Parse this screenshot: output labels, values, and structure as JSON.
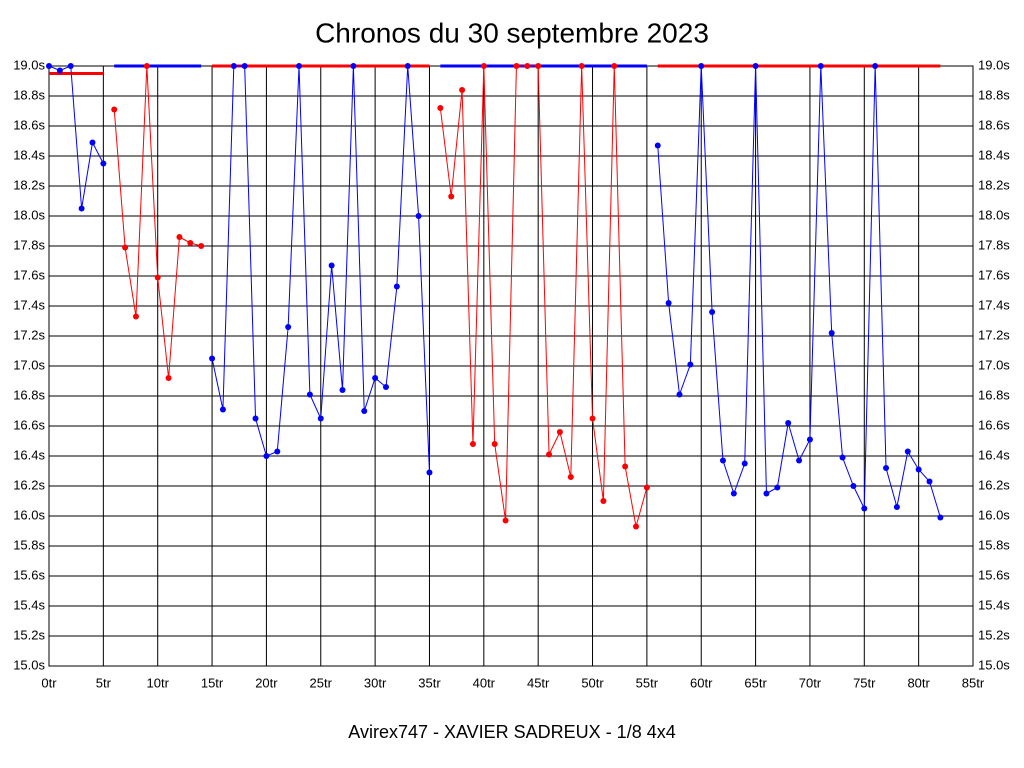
{
  "chart_data": {
    "type": "line",
    "title": "Chronos du 30 septembre 2023",
    "xlabel": "Avirex747 - XAVIER SADREUX - 1/8 4x4",
    "xlim": [
      0,
      85
    ],
    "ylim": [
      15.0,
      19.0
    ],
    "xticks": [
      {
        "value": 0,
        "label": "0tr"
      },
      {
        "value": 5,
        "label": "5tr"
      },
      {
        "value": 10,
        "label": "10tr"
      },
      {
        "value": 15,
        "label": "15tr"
      },
      {
        "value": 20,
        "label": "20tr"
      },
      {
        "value": 25,
        "label": "25tr"
      },
      {
        "value": 30,
        "label": "30tr"
      },
      {
        "value": 35,
        "label": "35tr"
      },
      {
        "value": 40,
        "label": "40tr"
      },
      {
        "value": 45,
        "label": "45tr"
      },
      {
        "value": 50,
        "label": "50tr"
      },
      {
        "value": 55,
        "label": "55tr"
      },
      {
        "value": 60,
        "label": "60tr"
      },
      {
        "value": 65,
        "label": "65tr"
      },
      {
        "value": 70,
        "label": "70tr"
      },
      {
        "value": 75,
        "label": "75tr"
      },
      {
        "value": 80,
        "label": "80tr"
      },
      {
        "value": 85,
        "label": "85tr"
      }
    ],
    "yticks": [
      {
        "value": 15.0,
        "label": "15.0s"
      },
      {
        "value": 15.2,
        "label": "15.2s"
      },
      {
        "value": 15.4,
        "label": "15.4s"
      },
      {
        "value": 15.6,
        "label": "15.6s"
      },
      {
        "value": 15.8,
        "label": "15.8s"
      },
      {
        "value": 16.0,
        "label": "16.0s"
      },
      {
        "value": 16.2,
        "label": "16.2s"
      },
      {
        "value": 16.4,
        "label": "16.4s"
      },
      {
        "value": 16.6,
        "label": "16.6s"
      },
      {
        "value": 16.8,
        "label": "16.8s"
      },
      {
        "value": 17.0,
        "label": "17.0s"
      },
      {
        "value": 17.2,
        "label": "17.2s"
      },
      {
        "value": 17.4,
        "label": "17.4s"
      },
      {
        "value": 17.6,
        "label": "17.6s"
      },
      {
        "value": 17.8,
        "label": "17.8s"
      },
      {
        "value": 18.0,
        "label": "18.0s"
      },
      {
        "value": 18.2,
        "label": "18.2s"
      },
      {
        "value": 18.4,
        "label": "18.4s"
      },
      {
        "value": 18.6,
        "label": "18.6s"
      },
      {
        "value": 18.8,
        "label": "18.8s"
      },
      {
        "value": 19.0,
        "label": "19.0s"
      }
    ],
    "grid": true,
    "series": [
      {
        "color": "#0000ff",
        "x": [
          0,
          1,
          2,
          3,
          4,
          5
        ],
        "values": [
          19.0,
          18.97,
          19.0,
          18.05,
          18.49,
          18.35
        ]
      },
      {
        "color": "#ff0000",
        "x": [
          6,
          7,
          8,
          9,
          10,
          11,
          12,
          13,
          14
        ],
        "values": [
          18.71,
          17.79,
          17.33,
          19.0,
          17.59,
          16.92,
          17.86,
          17.82,
          17.8
        ]
      },
      {
        "color": "#0000ff",
        "x": [
          15,
          16,
          17,
          18,
          19,
          20,
          21,
          22,
          23,
          24,
          25,
          26,
          27,
          28,
          29,
          30,
          31,
          32,
          33,
          34,
          35
        ],
        "values": [
          17.05,
          16.71,
          19.0,
          19.0,
          16.65,
          16.4,
          16.43,
          17.26,
          19.0,
          16.81,
          16.65,
          17.67,
          16.84,
          19.0,
          16.7,
          16.92,
          16.86,
          17.53,
          19.0,
          18.0,
          16.29
        ]
      },
      {
        "color": "#ff0000",
        "x": [
          36,
          37,
          38,
          39,
          40,
          41,
          42,
          43,
          44,
          45,
          46,
          47,
          48,
          49,
          50,
          51,
          52,
          53,
          54,
          55
        ],
        "values": [
          18.72,
          18.13,
          18.84,
          16.48,
          19.0,
          16.48,
          15.97,
          19.0,
          19.0,
          19.0,
          16.41,
          16.56,
          16.26,
          19.0,
          16.65,
          16.1,
          19.0,
          16.33,
          15.93,
          16.19
        ]
      },
      {
        "color": "#0000ff",
        "x": [
          56,
          57,
          58,
          59,
          60,
          61,
          62,
          63,
          64,
          65,
          66,
          67,
          68,
          69,
          70,
          71,
          72,
          73,
          74,
          75,
          76,
          77,
          78,
          79,
          80,
          81,
          82
        ],
        "values": [
          18.47,
          17.42,
          16.81,
          17.01,
          19.0,
          17.36,
          16.37,
          16.15,
          16.35,
          19.0,
          16.15,
          16.19,
          16.62,
          16.37,
          16.51,
          19.0,
          17.22,
          16.39,
          16.2,
          16.05,
          19.0,
          16.32,
          16.06,
          16.43,
          16.31,
          16.23,
          15.99
        ]
      }
    ],
    "level_lines": [
      {
        "x": [
          0,
          5
        ],
        "y": 18.95,
        "color": "#ff0000"
      },
      {
        "x": [
          6,
          14
        ],
        "y": 19.0,
        "color": "#0000ff"
      },
      {
        "x": [
          15,
          35
        ],
        "y": 19.0,
        "color": "#ff0000"
      },
      {
        "x": [
          36,
          55
        ],
        "y": 19.0,
        "color": "#0000ff"
      },
      {
        "x": [
          56,
          82
        ],
        "y": 19.0,
        "color": "#ff0000"
      }
    ]
  }
}
